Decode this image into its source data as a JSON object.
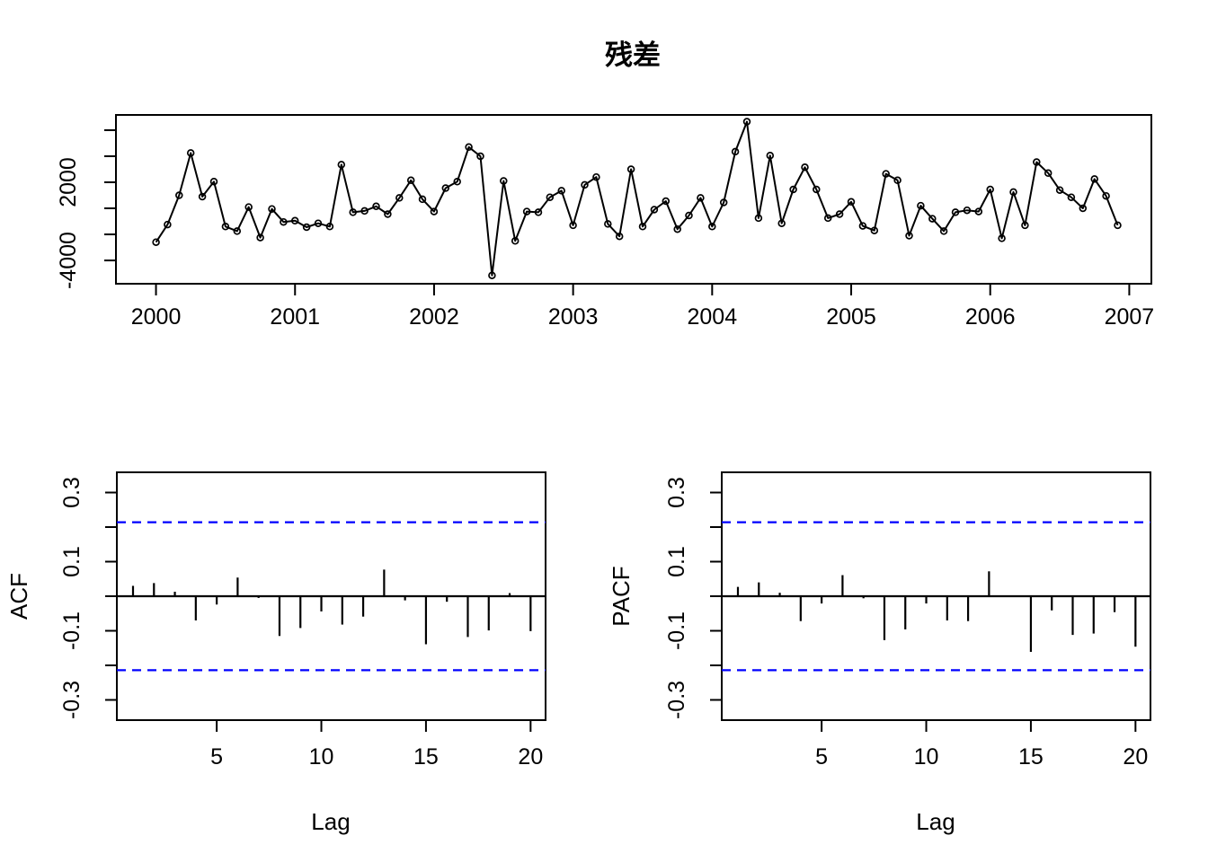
{
  "figure": {
    "background": "#ffffff",
    "line_color": "#000000",
    "confidence_line_color": "#0000ff"
  },
  "chart_data": [
    {
      "id": "residuals",
      "type": "line",
      "title": "残差",
      "xlabel": "",
      "ylabel": "",
      "marker": "open-circle",
      "x_start_year": 2000,
      "x_step_years": 0.0833333,
      "xlim": [
        1999.712,
        2007.159
      ],
      "ylim": [
        -5790,
        7170
      ],
      "x_ticks": [
        {
          "v": 2000,
          "label": "2000"
        },
        {
          "v": 2001,
          "label": "2001"
        },
        {
          "v": 2002,
          "label": "2002"
        },
        {
          "v": 2003,
          "label": "2003"
        },
        {
          "v": 2004,
          "label": "2004"
        },
        {
          "v": 2005,
          "label": "2005"
        },
        {
          "v": 2006,
          "label": "2006"
        },
        {
          "v": 2007,
          "label": "2007"
        }
      ],
      "y_ticks": [
        {
          "v": 6000
        },
        {
          "v": 4000
        },
        {
          "v": 2000,
          "label": "2000"
        },
        {
          "v": 0
        },
        {
          "v": -2000
        },
        {
          "v": -4000,
          "label": "-4000"
        }
      ],
      "values": [
        -2600,
        -1250,
        1000,
        4250,
        900,
        2050,
        -1400,
        -1750,
        100,
        -2250,
        -50,
        -1050,
        -950,
        -1450,
        -1150,
        -1400,
        3350,
        -300,
        -200,
        150,
        -450,
        800,
        2150,
        700,
        -250,
        1550,
        2050,
        4700,
        4000,
        -5150,
        2100,
        -2500,
        -250,
        -300,
        850,
        1350,
        -1300,
        1800,
        2400,
        -1200,
        -2150,
        3000,
        -1400,
        -100,
        550,
        -1600,
        -550,
        800,
        -1400,
        450,
        4350,
        6650,
        -750,
        4050,
        -1150,
        1450,
        3150,
        1450,
        -750,
        -450,
        500,
        -1350,
        -1700,
        2650,
        2150,
        -2100,
        200,
        -800,
        -1750,
        -300,
        -150,
        -250,
        1450,
        -2300,
        1250,
        -1300,
        3550,
        2700,
        1400,
        850,
        0,
        2250,
        950,
        -1300
      ]
    },
    {
      "id": "acf",
      "type": "bar",
      "title": "",
      "xlabel": "Lag",
      "ylabel": "ACF",
      "xlim": [
        0.227,
        20.716
      ],
      "ylim": [
        -0.3585,
        0.3585
      ],
      "confidence_bound": 0.214,
      "x_ticks": [
        {
          "v": 5,
          "label": "5"
        },
        {
          "v": 10,
          "label": "10"
        },
        {
          "v": 15,
          "label": "15"
        },
        {
          "v": 20,
          "label": "20"
        }
      ],
      "y_ticks": [
        {
          "v": 0.3,
          "label": "0.3"
        },
        {
          "v": 0.2
        },
        {
          "v": 0.1,
          "label": "0.1"
        },
        {
          "v": 0
        },
        {
          "v": -0.1,
          "label": "-0.1"
        },
        {
          "v": -0.2
        },
        {
          "v": -0.3,
          "label": "-0.3"
        }
      ],
      "lags": [
        1,
        2,
        3,
        4,
        5,
        6,
        7,
        8,
        9,
        10,
        11,
        12,
        13,
        14,
        15,
        16,
        17,
        18,
        19,
        20
      ],
      "values": [
        0.03,
        0.038,
        0.013,
        -0.07,
        -0.024,
        0.054,
        -0.005,
        -0.115,
        -0.092,
        -0.044,
        -0.082,
        -0.059,
        0.077,
        -0.012,
        -0.139,
        -0.016,
        -0.118,
        -0.099,
        0.009,
        -0.101
      ]
    },
    {
      "id": "pacf",
      "type": "bar",
      "title": "",
      "xlabel": "Lag",
      "ylabel": "PACF",
      "xlim": [
        0.227,
        20.716
      ],
      "ylim": [
        -0.3585,
        0.3585
      ],
      "confidence_bound": 0.214,
      "x_ticks": [
        {
          "v": 5,
          "label": "5"
        },
        {
          "v": 10,
          "label": "10"
        },
        {
          "v": 15,
          "label": "15"
        },
        {
          "v": 20,
          "label": "20"
        }
      ],
      "y_ticks": [
        {
          "v": 0.3,
          "label": "0.3"
        },
        {
          "v": 0.2
        },
        {
          "v": 0.1,
          "label": "0.1"
        },
        {
          "v": 0
        },
        {
          "v": -0.1,
          "label": "-0.1"
        },
        {
          "v": -0.2
        },
        {
          "v": -0.3,
          "label": "-0.3"
        }
      ],
      "lags": [
        1,
        2,
        3,
        4,
        5,
        6,
        7,
        8,
        9,
        10,
        11,
        12,
        13,
        14,
        15,
        16,
        17,
        18,
        19,
        20
      ],
      "values": [
        0.027,
        0.04,
        0.01,
        -0.072,
        -0.021,
        0.061,
        -0.006,
        -0.127,
        -0.096,
        -0.021,
        -0.07,
        -0.072,
        0.072,
        0.002,
        -0.161,
        -0.041,
        -0.112,
        -0.108,
        -0.046,
        -0.146
      ]
    }
  ]
}
